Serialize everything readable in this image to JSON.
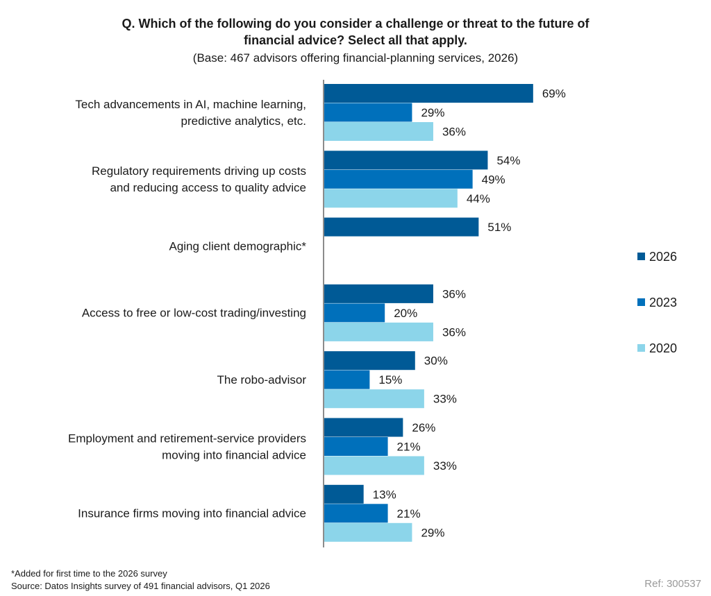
{
  "title_lines": [
    "Q. Which of the following do you consider a challenge or threat to the future of",
    "financial advice? Select all that apply."
  ],
  "subtitle": "(Base: 467 advisors offering financial-planning services, 2026)",
  "footnote": "*Added for first time to the 2026 survey",
  "source": "Source: Datos Insights survey of 491 financial advisors, Q1 2026",
  "ref": "Ref: 300537",
  "chart_data": {
    "type": "bar",
    "orientation": "horizontal",
    "categories": [
      [
        "Tech advancements in AI, machine learning,",
        "predictive analytics, etc."
      ],
      [
        "Regulatory requirements driving up costs",
        "and reducing access to quality advice"
      ],
      [
        "Aging client demographic*"
      ],
      [
        "Access to free or low-cost trading/investing"
      ],
      [
        "The robo-advisor"
      ],
      [
        "Employment and retirement-service providers",
        "moving into financial advice"
      ],
      [
        "Insurance firms moving into financial advice"
      ]
    ],
    "series": [
      {
        "name": "2026",
        "color": "#005a96",
        "values": [
          69,
          54,
          51,
          36,
          30,
          26,
          13
        ]
      },
      {
        "name": "2023",
        "color": "#0070bb",
        "values": [
          29,
          49,
          null,
          20,
          15,
          21,
          21
        ]
      },
      {
        "name": "2020",
        "color": "#8cd5ea",
        "values": [
          36,
          44,
          null,
          36,
          33,
          33,
          29
        ]
      }
    ],
    "value_suffix": "%",
    "xlim": [
      0,
      100
    ],
    "legend_position": "right",
    "grid": false
  }
}
